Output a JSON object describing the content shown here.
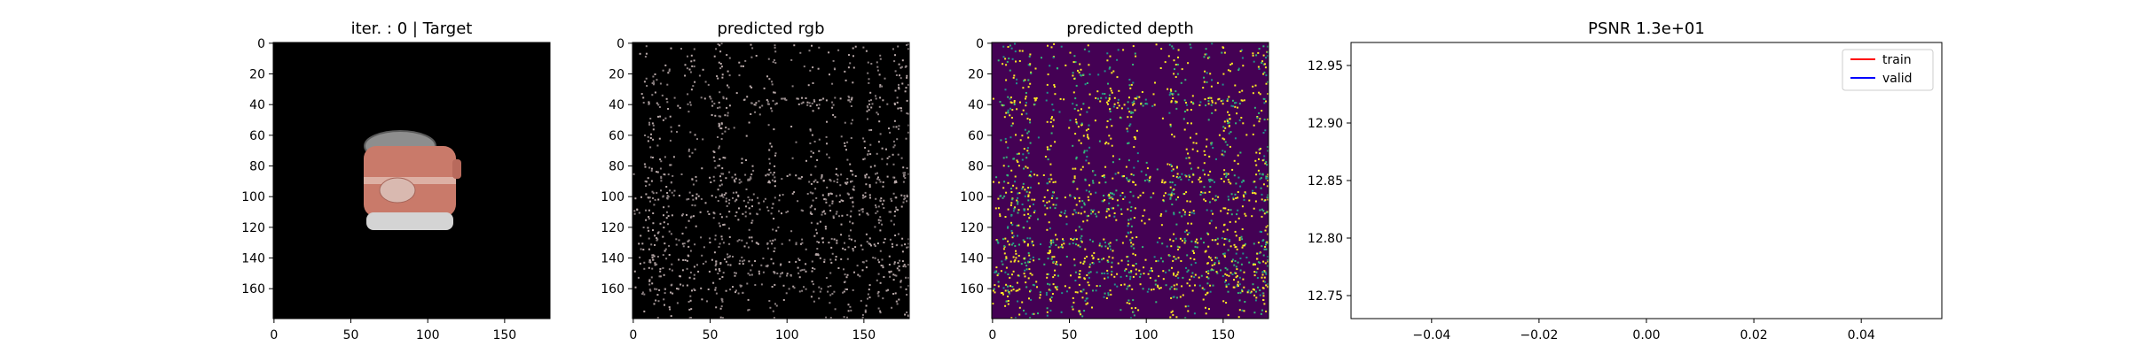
{
  "chart_data": [
    {
      "type": "image",
      "title": "iter. : 0 | Target",
      "colormap": "rgb",
      "x_ticks": [
        "0",
        "50",
        "100",
        "150"
      ],
      "y_ticks": [
        "0",
        "20",
        "40",
        "60",
        "80",
        "100",
        "120",
        "140",
        "160"
      ],
      "image_size": [
        180,
        180
      ],
      "content": "rice-cooker",
      "colors": {
        "background": "#000000",
        "body": "#c97a6a",
        "lid": "#9a9a9a",
        "base": "#d8d8d8"
      }
    },
    {
      "type": "image",
      "title": "predicted rgb",
      "colormap": "rgb",
      "x_ticks": [
        "0",
        "50",
        "100",
        "150"
      ],
      "y_ticks": [
        "0",
        "20",
        "40",
        "60",
        "80",
        "100",
        "120",
        "140",
        "160"
      ],
      "image_size": [
        180,
        180
      ],
      "content": "sparse-noise",
      "colors": {
        "background": "#000000",
        "speckle": "#b8a8a8"
      }
    },
    {
      "type": "heatmap",
      "title": "predicted depth",
      "colormap": "viridis",
      "x_ticks": [
        "0",
        "50",
        "100",
        "150"
      ],
      "y_ticks": [
        "0",
        "20",
        "40",
        "60",
        "80",
        "100",
        "120",
        "140",
        "160"
      ],
      "image_size": [
        180,
        180
      ],
      "content": "sparse-noise",
      "colors": {
        "background": "#440154",
        "mid": "#35b779",
        "high": "#fde725"
      }
    },
    {
      "type": "line",
      "title": "PSNR 1.3e+01",
      "x_ticks": [
        "−0.04",
        "−0.02",
        "0.00",
        "0.02",
        "0.04"
      ],
      "y_ticks": [
        "12.75",
        "12.80",
        "12.85",
        "12.90",
        "12.95"
      ],
      "xlim": [
        -0.055,
        0.055
      ],
      "ylim": [
        12.73,
        12.97
      ],
      "series": [
        {
          "name": "train",
          "color": "#ff0000",
          "values": []
        },
        {
          "name": "valid",
          "color": "#0000ff",
          "values": []
        }
      ],
      "legend": "top-right"
    }
  ]
}
